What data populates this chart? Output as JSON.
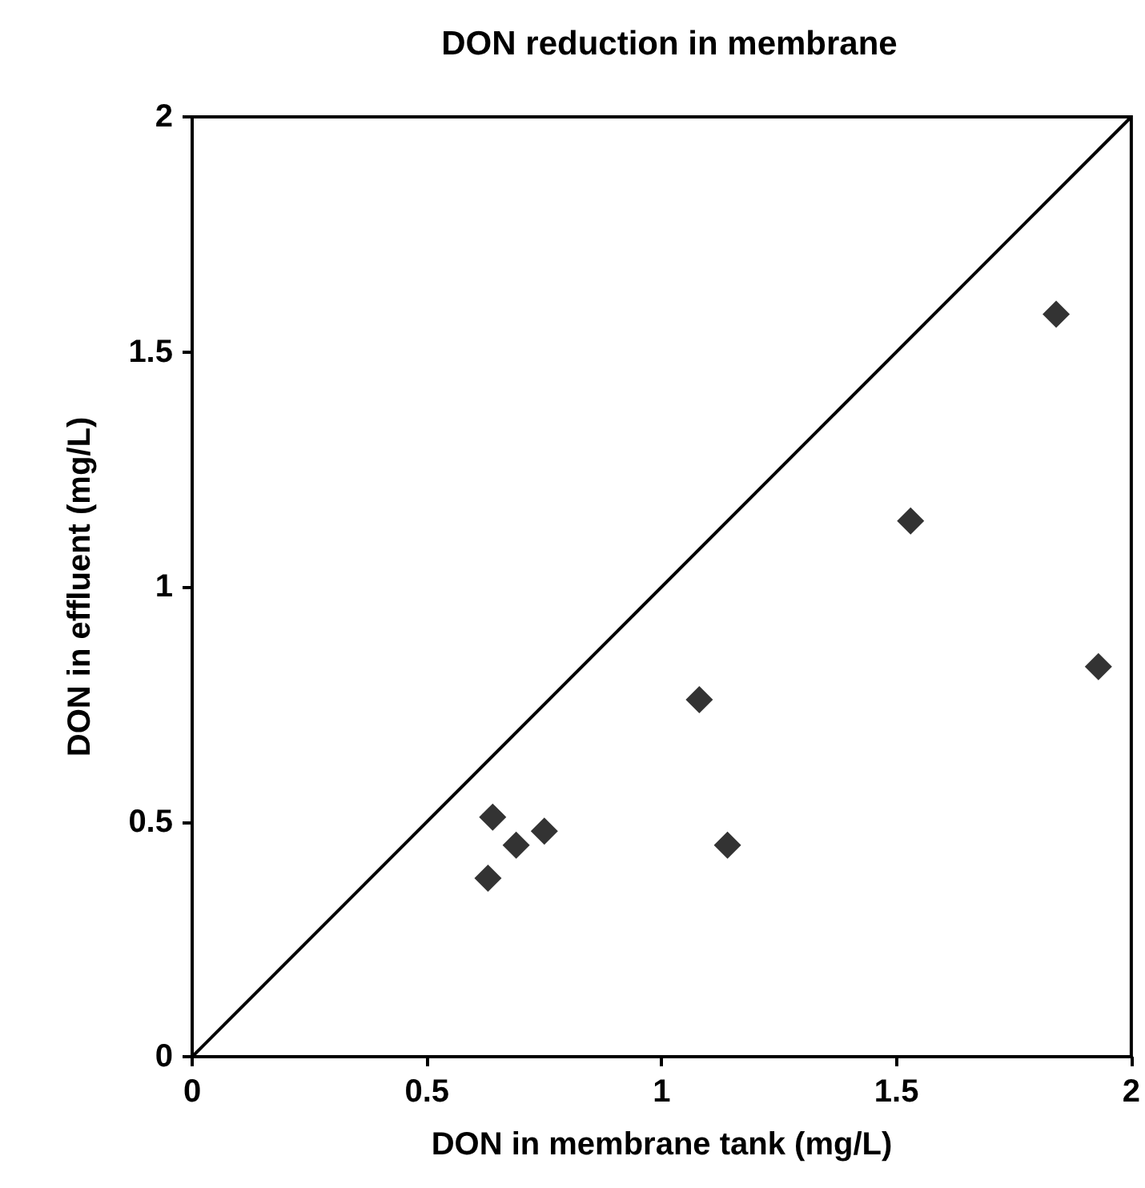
{
  "chart_data": {
    "type": "scatter",
    "title": "DON reduction in membrane",
    "xlabel": "DON in membrane tank (mg/L)",
    "ylabel": "DON in effluent (mg/L)",
    "xlim": [
      0,
      2
    ],
    "xticks": [
      0,
      0.5,
      1,
      1.5,
      2
    ],
    "ylim": [
      0,
      2
    ],
    "yticks": [
      0,
      0.5,
      1,
      1.5,
      2
    ],
    "grid": false,
    "marker": "diamond",
    "series": [
      {
        "color": "#000000",
        "x": [
          0.63,
          0.64,
          0.69,
          0.75,
          1.08,
          1.14,
          1.53,
          1.84,
          1.93
        ],
        "values": [
          0.38,
          0.51,
          0.45,
          0.48,
          0.76,
          0.45,
          1.14,
          1.58,
          0.83
        ]
      },
      {
        "type": "line",
        "color": "#000000",
        "marker": "none",
        "line_style": "solid",
        "x": [
          0,
          2
        ],
        "values": [
          0,
          2
        ]
      }
    ]
  }
}
